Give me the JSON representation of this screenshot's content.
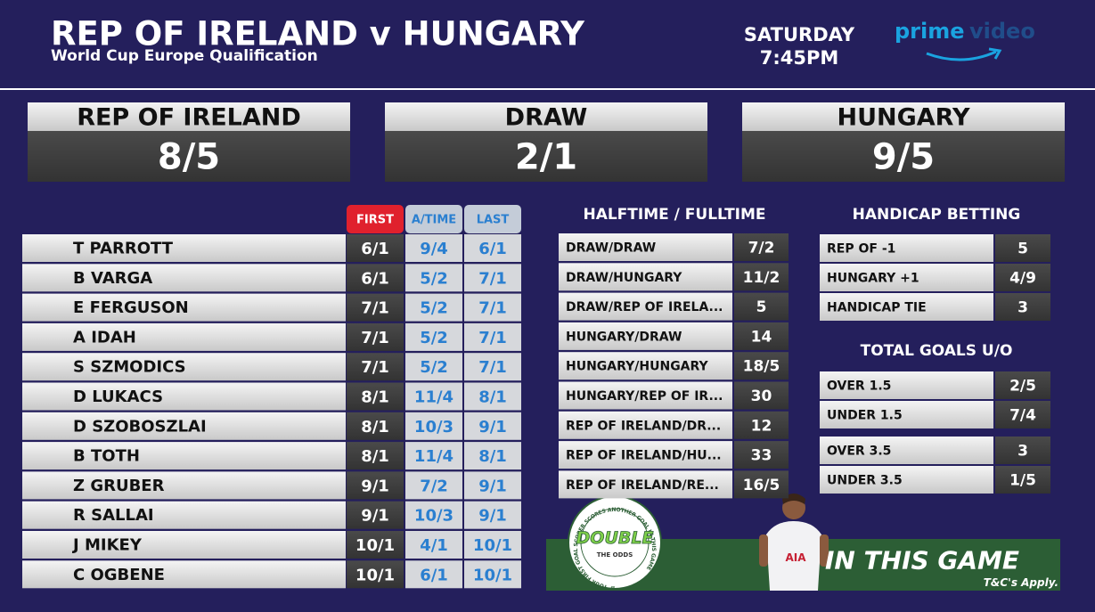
{
  "header": {
    "title": "REP OF IRELAND v HUNGARY",
    "subtitle": "World Cup Europe Qualification",
    "day": "SATURDAY",
    "time": "7:45PM",
    "logo": {
      "word1": "prime",
      "word2": "video"
    }
  },
  "match_odds": [
    {
      "label": "REP OF IRELAND",
      "odds": "8/5"
    },
    {
      "label": "DRAW",
      "odds": "2/1"
    },
    {
      "label": "HUNGARY",
      "odds": "9/5"
    }
  ],
  "scorers": {
    "columns": [
      "FIRST",
      "A/TIME",
      "LAST"
    ],
    "rows": [
      [
        "T PARROTT",
        "6/1",
        "9/4",
        "6/1"
      ],
      [
        "B VARGA",
        "6/1",
        "5/2",
        "7/1"
      ],
      [
        "E FERGUSON",
        "7/1",
        "5/2",
        "7/1"
      ],
      [
        "A IDAH",
        "7/1",
        "5/2",
        "7/1"
      ],
      [
        "S SZMODICS",
        "7/1",
        "5/2",
        "7/1"
      ],
      [
        "D LUKACS",
        "8/1",
        "11/4",
        "8/1"
      ],
      [
        "D SZOBOSZLAI",
        "8/1",
        "10/3",
        "9/1"
      ],
      [
        "B TOTH",
        "8/1",
        "11/4",
        "8/1"
      ],
      [
        "Z GRUBER",
        "9/1",
        "7/2",
        "9/1"
      ],
      [
        "R SALLAI",
        "9/1",
        "10/3",
        "9/1"
      ],
      [
        "J MIKEY",
        "10/1",
        "4/1",
        "10/1"
      ],
      [
        "C OGBENE",
        "10/1",
        "6/1",
        "10/1"
      ]
    ]
  },
  "htft": {
    "title": "HALFTIME / FULLTIME",
    "rows": [
      [
        "DRAW/DRAW",
        "7/2"
      ],
      [
        "DRAW/HUNGARY",
        "11/2"
      ],
      [
        "DRAW/REP OF IRELA...",
        "5"
      ],
      [
        "HUNGARY/DRAW",
        "14"
      ],
      [
        "HUNGARY/HUNGARY",
        "18/5"
      ],
      [
        "HUNGARY/REP OF IR...",
        "30"
      ],
      [
        "REP OF IRELAND/DR...",
        "12"
      ],
      [
        "REP OF IRELAND/HU...",
        "33"
      ],
      [
        "REP OF IRELAND/RE...",
        "16/5"
      ]
    ]
  },
  "handicap": {
    "title": "HANDICAP BETTING",
    "rows": [
      [
        "REP OF -1",
        "5"
      ],
      [
        "HUNGARY +1",
        "4/9"
      ],
      [
        "HANDICAP TIE",
        "3"
      ]
    ]
  },
  "total_goals": {
    "title": "TOTAL GOALS U/O",
    "rows": [
      [
        "OVER 1.5",
        "2/5"
      ],
      [
        "UNDER 1.5",
        "7/4"
      ],
      [
        "OVER 3.5",
        "3"
      ],
      [
        "UNDER 3.5",
        "1/5"
      ]
    ]
  },
  "promo": {
    "badge_top": "DOUBLE",
    "badge_bottom": "THE ODDS",
    "badge_ring": "IF YOUR FIRST GOAL SCORER SCORES ANOTHER GOAL IN THIS GAME",
    "headline": "IN THIS GAME",
    "terms": "T&C's Apply."
  }
}
